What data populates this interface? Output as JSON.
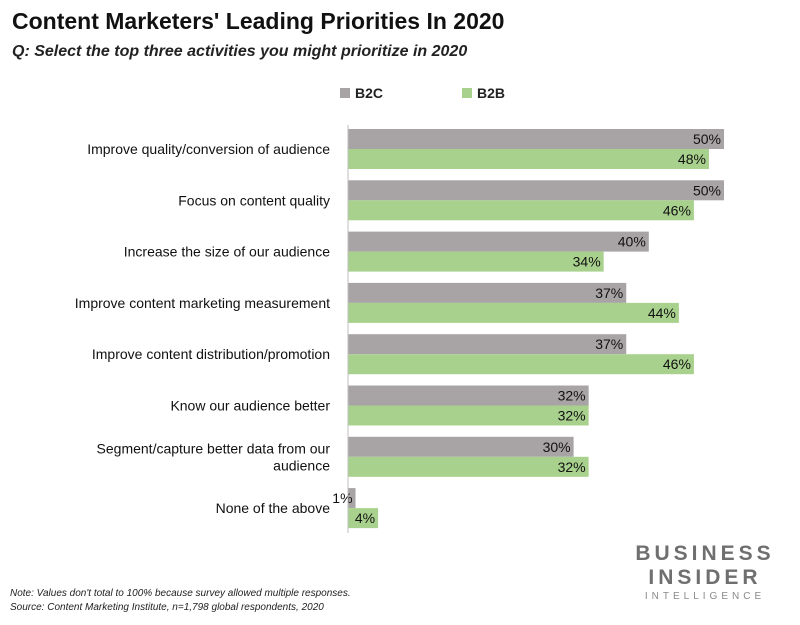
{
  "header": {
    "title": "Content Marketers' Leading Priorities In 2020",
    "subtitle": "Q: Select the top three activities you might prioritize in 2020"
  },
  "chart_data": {
    "type": "bar",
    "orientation": "horizontal",
    "categories": [
      [
        "Improve quality/conversion of audience"
      ],
      [
        "Focus on content quality"
      ],
      [
        "Increase the size of our audience"
      ],
      [
        "Improve content marketing measurement"
      ],
      [
        "Improve content distribution/promotion"
      ],
      [
        "Know our audience better"
      ],
      [
        "Segment/capture better data from our",
        "audience"
      ],
      [
        "None of the above"
      ]
    ],
    "series": [
      {
        "name": "B2C",
        "color": "#a8a3a5",
        "values": [
          50,
          50,
          40,
          37,
          37,
          32,
          30,
          1
        ]
      },
      {
        "name": "B2B",
        "color": "#a9d18e",
        "values": [
          48,
          46,
          34,
          44,
          46,
          32,
          32,
          4
        ]
      }
    ],
    "value_suffix": "%",
    "xlim": [
      0,
      50
    ],
    "grid": false,
    "legend_position": "top"
  },
  "footer": {
    "note": "Note: Values don't total to 100% because survey allowed multiple responses.",
    "source": "Source: Content Marketing Institute, n=1,798 global respondents, 2020"
  },
  "logo": {
    "line1": "BUSINESS",
    "line2": "INSIDER",
    "line3": "INTELLIGENCE"
  }
}
